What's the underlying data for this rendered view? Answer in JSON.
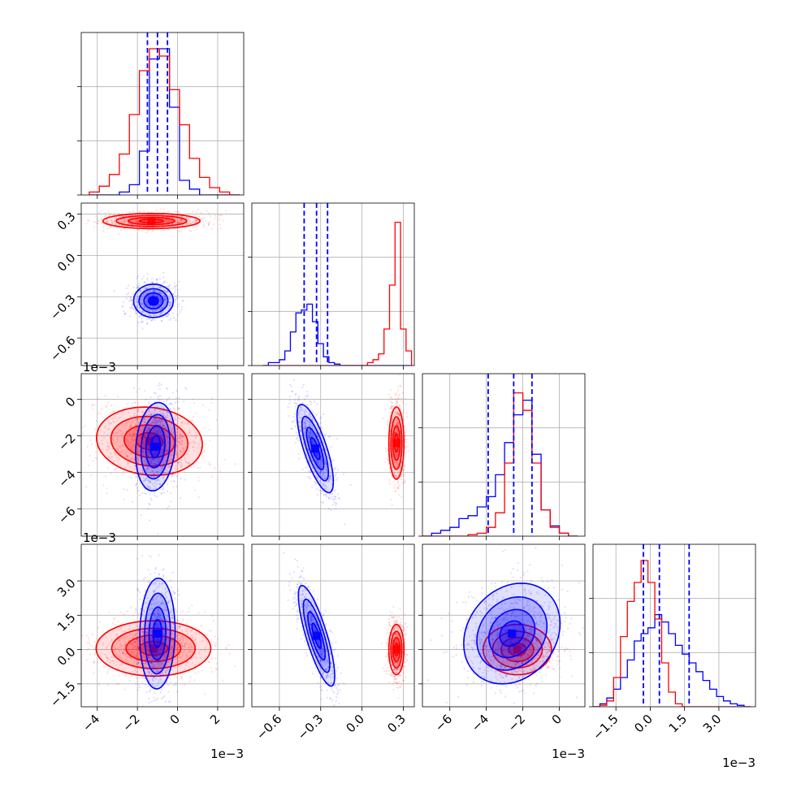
{
  "chart_data": {
    "type": "corner",
    "grid": true,
    "n_params": 4,
    "colors": {
      "samples_a": "#0000ff",
      "samples_b": "#ff0000",
      "quantiles": "#0000ff"
    },
    "axes": [
      {
        "range": [
          -4.8,
          3.3
        ],
        "ticks": [
          -4,
          -2,
          0,
          2
        ],
        "tick_labels": [
          "−4",
          "−2",
          "0",
          "2"
        ],
        "scale_label": "1e−3"
      },
      {
        "range": [
          -0.8,
          0.38
        ],
        "ticks": [
          -0.6,
          -0.3,
          0.0,
          0.3
        ],
        "tick_labels": [
          "−0.6",
          "−0.3",
          "0.0",
          "0.3"
        ],
        "scale_label": ""
      },
      {
        "range": [
          -7.5,
          1.4
        ],
        "ticks": [
          -6,
          -4,
          -2,
          0
        ],
        "tick_labels": [
          "−6",
          "−4",
          "−2",
          "0"
        ],
        "scale_label": "1e−3"
      },
      {
        "range": [
          -2.5,
          4.6
        ],
        "ticks": [
          -1.5,
          0.0,
          1.5,
          3.0
        ],
        "tick_labels": [
          "−1.5",
          "0.0",
          "1.5",
          "3.0"
        ],
        "scale_label": "1e−3"
      }
    ],
    "quantiles_blue": [
      [
        -1.5,
        -1.0,
        -0.5
      ],
      [
        -0.42,
        -0.33,
        -0.25
      ],
      [
        -3.9,
        -2.5,
        -1.5
      ],
      [
        -0.3,
        0.4,
        1.7
      ]
    ],
    "histograms": [
      {
        "bins": [
          -4.4,
          -3.9,
          -3.4,
          -2.9,
          -2.4,
          -1.9,
          -1.4,
          -0.9,
          -0.4,
          0.1,
          0.6,
          1.1,
          1.6,
          2.1,
          2.6,
          3.1
        ],
        "blue": [
          0,
          0,
          0,
          0.02,
          0.07,
          0.3,
          0.93,
          1.0,
          0.6,
          0.1,
          0.04,
          0,
          0,
          0,
          0
        ],
        "red": [
          0.02,
          0.06,
          0.14,
          0.28,
          0.55,
          0.85,
          1.0,
          0.95,
          0.72,
          0.48,
          0.25,
          0.12,
          0.05,
          0.02,
          0
        ]
      },
      {
        "bins": [
          -0.72,
          -0.68,
          -0.64,
          -0.6,
          -0.56,
          -0.52,
          -0.48,
          -0.44,
          -0.4,
          -0.36,
          -0.32,
          -0.28,
          -0.24,
          -0.2,
          -0.16,
          -0.12,
          -0.08,
          -0.04,
          0.0,
          0.04,
          0.08,
          0.12,
          0.16,
          0.2,
          0.24,
          0.28,
          0.32,
          0.36
        ],
        "blue": [
          0,
          0.02,
          0.02,
          0.04,
          0.1,
          0.23,
          0.36,
          0.38,
          0.42,
          0.3,
          0.15,
          0.06,
          0.02,
          0.01,
          0,
          0,
          0,
          0,
          0,
          0,
          0,
          0,
          0,
          0,
          0,
          0,
          0
        ],
        "red": [
          0,
          0,
          0,
          0,
          0,
          0,
          0,
          0,
          0,
          0,
          0,
          0,
          0,
          0,
          0,
          0,
          0,
          0,
          0,
          0.02,
          0.04,
          0.08,
          0.25,
          0.55,
          0.98,
          0.25,
          0.1
        ]
      },
      {
        "bins": [
          -7.5,
          -7.0,
          -6.5,
          -6.0,
          -5.5,
          -5.0,
          -4.5,
          -4.0,
          -3.5,
          -3.0,
          -2.5,
          -2.0,
          -1.5,
          -1.0,
          -0.5,
          0.0,
          0.5,
          1.0
        ],
        "blue": [
          0,
          0.02,
          0.04,
          0.06,
          0.12,
          0.14,
          0.2,
          0.27,
          0.42,
          0.64,
          0.83,
          0.93,
          0.56,
          0.18,
          0.07,
          0.02,
          0
        ],
        "red": [
          0,
          0,
          0,
          0,
          0,
          0.01,
          0.02,
          0.06,
          0.16,
          0.5,
          0.98,
          0.86,
          0.5,
          0.18,
          0.06,
          0.02,
          0
        ]
      },
      {
        "bins": [
          -2.5,
          -2.2,
          -1.9,
          -1.6,
          -1.3,
          -1.0,
          -0.7,
          -0.4,
          -0.1,
          0.2,
          0.5,
          0.8,
          1.1,
          1.4,
          1.7,
          2.0,
          2.3,
          2.6,
          2.9,
          3.2,
          3.5,
          3.8,
          4.1,
          4.4
        ],
        "blue": [
          0,
          0.02,
          0.06,
          0.12,
          0.2,
          0.32,
          0.45,
          0.5,
          0.54,
          0.63,
          0.58,
          0.5,
          0.42,
          0.36,
          0.3,
          0.24,
          0.18,
          0.12,
          0.07,
          0.04,
          0.02,
          0.01,
          0
        ],
        "red": [
          0,
          0.01,
          0.04,
          0.2,
          0.48,
          0.72,
          0.85,
          1.0,
          0.85,
          0.6,
          0.3,
          0.1,
          0.02,
          0,
          0,
          0,
          0,
          0,
          0,
          0,
          0,
          0,
          0
        ]
      }
    ],
    "scatter_panels": [
      {
        "row": 1,
        "col": 0,
        "blue": {
          "mean": [
            -1.2,
            -0.33
          ],
          "sd": [
            0.45,
            0.055
          ],
          "rho": 0.0,
          "fill_levels": 4
        },
        "red": {
          "mean": [
            -1.3,
            0.25
          ],
          "sd": [
            1.1,
            0.025
          ],
          "rho": 0.0,
          "fill_levels": 4
        }
      },
      {
        "row": 2,
        "col": 0,
        "blue": {
          "mean": [
            -1.1,
            -2.6
          ],
          "sd": [
            0.45,
            1.1
          ],
          "rho": 0.15,
          "fill_levels": 4
        },
        "red": {
          "mean": [
            -1.4,
            -2.3
          ],
          "sd": [
            1.2,
            0.85
          ],
          "rho": -0.1,
          "fill_levels": 4
        }
      },
      {
        "row": 2,
        "col": 1,
        "blue": {
          "mean": [
            -0.34,
            -2.7
          ],
          "sd": [
            0.06,
            1.1
          ],
          "rho": -0.75,
          "fill_levels": 4
        },
        "red": {
          "mean": [
            0.25,
            -2.4
          ],
          "sd": [
            0.025,
            0.9
          ],
          "rho": 0.0,
          "fill_levels": 4
        }
      },
      {
        "row": 3,
        "col": 0,
        "blue": {
          "mean": [
            -1.0,
            0.7
          ],
          "sd": [
            0.4,
            1.1
          ],
          "rho": 0.05,
          "fill_levels": 4
        },
        "red": {
          "mean": [
            -1.2,
            0.05
          ],
          "sd": [
            1.3,
            0.55
          ],
          "rho": 0.0,
          "fill_levels": 4
        }
      },
      {
        "row": 3,
        "col": 1,
        "blue": {
          "mean": [
            -0.33,
            0.6
          ],
          "sd": [
            0.06,
            1.0
          ],
          "rho": -0.8,
          "fill_levels": 4
        },
        "red": {
          "mean": [
            0.25,
            0.0
          ],
          "sd": [
            0.025,
            0.5
          ],
          "rho": 0.0,
          "fill_levels": 4
        }
      },
      {
        "row": 3,
        "col": 2,
        "blue": {
          "mean": [
            -2.6,
            0.7
          ],
          "sd": [
            1.2,
            1.0
          ],
          "rho": 0.2,
          "fill_levels": 4
        },
        "red": {
          "mean": [
            -2.3,
            0.0
          ],
          "sd": [
            0.85,
            0.5
          ],
          "rho": 0.0,
          "fill_levels": 4
        }
      }
    ]
  }
}
